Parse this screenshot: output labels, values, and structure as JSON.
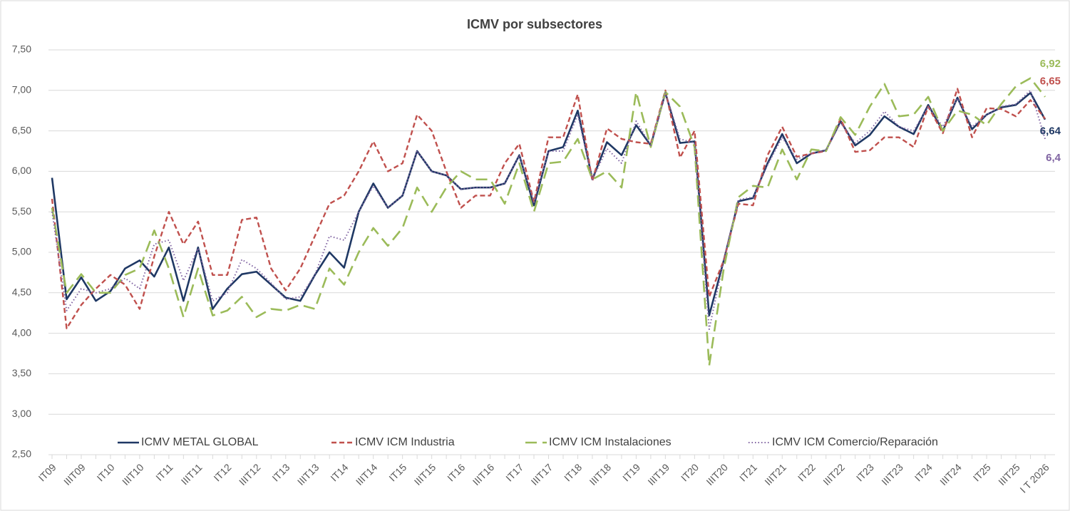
{
  "chart_data": {
    "type": "line",
    "title": "ICMV por subsectores",
    "categories": [
      "IT09",
      null,
      "IIIT09",
      null,
      "IT10",
      null,
      "IIIT10",
      null,
      "IT11",
      null,
      "IIIT11",
      null,
      "IT12",
      null,
      "IIIT12",
      null,
      "IT13",
      null,
      "IIIT13",
      null,
      "IT14",
      null,
      "IIIT14",
      null,
      "IT15",
      null,
      "IIIT15",
      null,
      "IT16",
      null,
      "IIIT16",
      null,
      "IT17",
      null,
      "IIIT17",
      null,
      "IT18",
      null,
      "IIIT18",
      null,
      "IT19",
      null,
      "IIIT19",
      null,
      "IT20",
      null,
      "IIIT20",
      null,
      "IT21",
      null,
      "IIIT21",
      null,
      "IT22",
      null,
      "IIIT22",
      null,
      "IT23",
      null,
      "IIIT23",
      null,
      "IT24",
      null,
      "IIIT24",
      null,
      "IT25",
      null,
      "IIIT25",
      null,
      "I T 2026"
    ],
    "series": [
      {
        "name": "ICMV METAL GLOBAL",
        "color": "#1f3864",
        "values": [
          5.92,
          4.42,
          4.69,
          4.4,
          4.52,
          4.8,
          4.9,
          4.7,
          5.06,
          4.4,
          5.06,
          4.3,
          4.55,
          4.73,
          4.76,
          4.6,
          4.44,
          4.4,
          4.72,
          5.0,
          4.81,
          5.5,
          5.85,
          5.55,
          5.7,
          6.25,
          6.0,
          5.95,
          5.78,
          5.8,
          5.8,
          5.85,
          6.2,
          5.58,
          6.25,
          6.3,
          6.75,
          5.9,
          6.36,
          6.2,
          6.57,
          6.32,
          6.97,
          6.35,
          6.37,
          4.22,
          4.9,
          5.63,
          5.67,
          6.1,
          6.46,
          6.1,
          6.22,
          6.26,
          6.62,
          6.32,
          6.45,
          6.68,
          6.55,
          6.46,
          6.82,
          6.5,
          6.91,
          6.52,
          6.7,
          6.79,
          6.82,
          6.97,
          6.64
        ],
        "value_labels": [
          null,
          null,
          null,
          null,
          null,
          null,
          null,
          null,
          null,
          null,
          null,
          null,
          null,
          null,
          null,
          null,
          null,
          null,
          null,
          null,
          null,
          null,
          null,
          null,
          null,
          null,
          null,
          null,
          null,
          null,
          null,
          null,
          null,
          null,
          null,
          null,
          null,
          null,
          null,
          null,
          null,
          null,
          null,
          null,
          null,
          null,
          null,
          null,
          null,
          null,
          null,
          null,
          null,
          null,
          null,
          null,
          null,
          null,
          null,
          null,
          null,
          null,
          null,
          null,
          null,
          null,
          null,
          null,
          "6,64"
        ]
      },
      {
        "name": "ICMV ICM Industria",
        "color": "#c0504d",
        "values": [
          5.66,
          4.06,
          4.35,
          4.55,
          4.72,
          4.6,
          4.3,
          4.95,
          5.5,
          5.1,
          5.38,
          4.72,
          4.72,
          5.4,
          5.43,
          4.8,
          4.53,
          4.8,
          5.2,
          5.6,
          5.7,
          6.0,
          6.37,
          6.0,
          6.1,
          6.7,
          6.5,
          6.0,
          5.55,
          5.7,
          5.7,
          6.1,
          6.34,
          5.62,
          6.42,
          6.42,
          6.95,
          5.88,
          6.53,
          6.4,
          6.36,
          6.34,
          7.0,
          6.17,
          6.5,
          4.45,
          4.9,
          5.6,
          5.58,
          6.2,
          6.55,
          6.18,
          6.22,
          6.25,
          6.65,
          6.24,
          6.26,
          6.42,
          6.42,
          6.3,
          6.8,
          6.47,
          7.02,
          6.42,
          6.78,
          6.77,
          6.68,
          6.88,
          6.65
        ],
        "value_labels": [
          null,
          null,
          null,
          null,
          null,
          null,
          null,
          null,
          null,
          null,
          null,
          null,
          null,
          null,
          null,
          null,
          null,
          null,
          null,
          null,
          null,
          null,
          null,
          null,
          null,
          null,
          null,
          null,
          null,
          null,
          null,
          null,
          null,
          null,
          null,
          null,
          null,
          null,
          null,
          null,
          null,
          null,
          null,
          null,
          null,
          null,
          null,
          null,
          null,
          null,
          null,
          null,
          null,
          null,
          null,
          null,
          null,
          null,
          null,
          null,
          null,
          null,
          null,
          null,
          null,
          null,
          null,
          null,
          "6,65"
        ]
      },
      {
        "name": "ICMV ICM Instalaciones",
        "color": "#9bbb59",
        "values": [
          5.55,
          4.5,
          4.73,
          4.5,
          4.5,
          4.72,
          4.8,
          5.27,
          4.8,
          4.2,
          4.8,
          4.22,
          4.28,
          4.45,
          4.2,
          4.3,
          4.28,
          4.35,
          4.3,
          4.8,
          4.6,
          5.0,
          5.3,
          5.08,
          5.3,
          5.8,
          5.5,
          5.8,
          6.0,
          5.9,
          5.9,
          5.6,
          6.1,
          5.5,
          6.1,
          6.12,
          6.4,
          5.9,
          6.0,
          5.8,
          6.98,
          6.3,
          6.98,
          6.8,
          6.3,
          3.6,
          4.8,
          5.68,
          5.82,
          5.8,
          6.27,
          5.9,
          6.27,
          6.25,
          6.67,
          6.45,
          6.8,
          7.08,
          6.68,
          6.7,
          6.92,
          6.5,
          6.75,
          6.7,
          6.57,
          6.83,
          7.05,
          7.15,
          6.92
        ],
        "value_labels": [
          null,
          null,
          null,
          null,
          null,
          null,
          null,
          null,
          null,
          null,
          null,
          null,
          null,
          null,
          null,
          null,
          null,
          null,
          null,
          null,
          null,
          null,
          null,
          null,
          null,
          null,
          null,
          null,
          null,
          null,
          null,
          null,
          null,
          null,
          null,
          null,
          null,
          null,
          null,
          null,
          null,
          null,
          null,
          null,
          null,
          null,
          null,
          null,
          null,
          null,
          null,
          null,
          null,
          null,
          null,
          null,
          null,
          null,
          null,
          null,
          null,
          null,
          null,
          null,
          null,
          null,
          null,
          null,
          "6,92"
        ]
      },
      {
        "name": "ICMV ICM Comercio/Reparación",
        "color": "#8064a2",
        "values": [
          5.5,
          4.28,
          4.55,
          4.5,
          4.55,
          4.68,
          4.55,
          5.1,
          5.15,
          4.65,
          5.05,
          4.4,
          4.5,
          4.91,
          4.8,
          4.62,
          4.42,
          4.45,
          4.72,
          5.2,
          5.15,
          5.5,
          5.82,
          5.55,
          5.7,
          6.25,
          6.0,
          5.95,
          5.78,
          5.8,
          5.8,
          5.85,
          6.2,
          5.62,
          6.25,
          6.25,
          6.7,
          5.9,
          6.28,
          6.1,
          6.62,
          6.32,
          6.97,
          6.4,
          6.35,
          4.05,
          4.9,
          5.65,
          5.68,
          6.08,
          6.42,
          6.15,
          6.22,
          6.26,
          6.6,
          6.35,
          6.5,
          6.74,
          6.55,
          6.5,
          6.8,
          6.55,
          6.9,
          6.55,
          6.7,
          6.8,
          6.83,
          7.0,
          6.4
        ],
        "value_labels": [
          null,
          null,
          null,
          null,
          null,
          null,
          null,
          null,
          null,
          null,
          null,
          null,
          null,
          null,
          null,
          null,
          null,
          null,
          null,
          null,
          null,
          null,
          null,
          null,
          null,
          null,
          null,
          null,
          null,
          null,
          null,
          null,
          null,
          null,
          null,
          null,
          null,
          null,
          null,
          null,
          null,
          null,
          null,
          null,
          null,
          null,
          null,
          null,
          null,
          null,
          null,
          null,
          null,
          null,
          null,
          null,
          null,
          null,
          null,
          null,
          null,
          null,
          null,
          null,
          null,
          null,
          null,
          null,
          "6,4"
        ]
      }
    ],
    "ylim": [
      2.5,
      7.5
    ],
    "yticks": [
      {
        "value": 2.5,
        "label": "2,50"
      },
      {
        "value": 3,
        "label": "3,00"
      },
      {
        "value": 3.5,
        "label": "3,50"
      },
      {
        "value": 4,
        "label": "4,00"
      },
      {
        "value": 4.5,
        "label": "4,50"
      },
      {
        "value": 5,
        "label": "5,00"
      },
      {
        "value": 5.5,
        "label": "5,50"
      },
      {
        "value": 6,
        "label": "6,00"
      },
      {
        "value": 6.5,
        "label": "6,50"
      },
      {
        "value": 7,
        "label": "7,00"
      },
      {
        "value": 7.5,
        "label": "7,50"
      }
    ],
    "grid": true,
    "legend": "bottom"
  }
}
